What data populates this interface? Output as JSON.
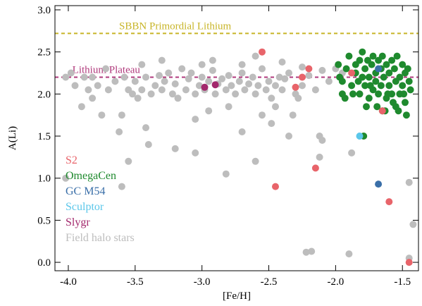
{
  "chart_data": {
    "type": "scatter",
    "xlabel": "[Fe/H]",
    "ylabel": "A(Li)",
    "xlim": [
      -4.1,
      -1.38
    ],
    "ylim": [
      -0.1,
      3.05
    ],
    "xticks": [
      -4.0,
      -3.5,
      -3.0,
      -2.5,
      -2.0,
      -1.5
    ],
    "xtick_labels": [
      "-4.0",
      "-3.5",
      "-3.0",
      "-2.5",
      "-2.0",
      "-1.5"
    ],
    "yticks": [
      0.0,
      0.5,
      1.0,
      1.5,
      2.0,
      2.5,
      3.0
    ],
    "ytick_labels": [
      "0.0",
      "0.5",
      "1.0",
      "1.5",
      "2.0",
      "2.5",
      "3.0"
    ],
    "reference_lines": [
      {
        "label": "SBBN Primordial Lithium",
        "y": 2.72,
        "color": "#c8b528"
      },
      {
        "label": "Lithium Plateau",
        "y": 2.2,
        "color": "#b03a7c"
      }
    ],
    "legend": {
      "placement": "left",
      "entries": [
        {
          "label": "S2",
          "color": "#e8646a"
        },
        {
          "label": "OmegaCen",
          "color": "#1f8a2e"
        },
        {
          "label": "GC M54",
          "color": "#3a6fa8"
        },
        {
          "label": "Sculptor",
          "color": "#5bc7ea"
        },
        {
          "label": "Slygr",
          "color": "#a3286c"
        },
        {
          "label": "Field halo stars",
          "color": "#bdbdbd"
        }
      ]
    },
    "series": [
      {
        "name": "Field halo stars",
        "color": "#bdbdbd",
        "points": [
          [
            -4.02,
            2.2
          ],
          [
            -3.98,
            2.25
          ],
          [
            -3.95,
            2.1
          ],
          [
            -3.9,
            1.85
          ],
          [
            -3.88,
            2.2
          ],
          [
            -3.85,
            2.05
          ],
          [
            -3.82,
            1.95
          ],
          [
            -3.78,
            2.1
          ],
          [
            -3.75,
            1.75
          ],
          [
            -3.7,
            2.05
          ],
          [
            -3.65,
            2.15
          ],
          [
            -3.62,
            1.55
          ],
          [
            -3.6,
            1.75
          ],
          [
            -3.58,
            2.2
          ],
          [
            -3.55,
            2.05
          ],
          [
            -3.52,
            2.0
          ],
          [
            -3.5,
            2.15
          ],
          [
            -3.48,
            1.95
          ],
          [
            -3.45,
            2.05
          ],
          [
            -3.42,
            2.2
          ],
          [
            -3.4,
            1.4
          ],
          [
            -3.38,
            2.0
          ],
          [
            -3.35,
            2.1
          ],
          [
            -3.32,
            2.22
          ],
          [
            -3.3,
            2.05
          ],
          [
            -3.28,
            2.15
          ],
          [
            -3.25,
            2.25
          ],
          [
            -3.22,
            2.0
          ],
          [
            -3.2,
            2.12
          ],
          [
            -3.18,
            1.95
          ],
          [
            -3.15,
            2.3
          ],
          [
            -3.12,
            2.05
          ],
          [
            -3.1,
            2.18
          ],
          [
            -3.08,
            2.25
          ],
          [
            -3.05,
            2.0
          ],
          [
            -3.02,
            2.1
          ],
          [
            -3.0,
            2.2
          ],
          [
            -2.98,
            2.05
          ],
          [
            -2.95,
            2.15
          ],
          [
            -2.92,
            2.28
          ],
          [
            -2.9,
            2.0
          ],
          [
            -2.88,
            2.12
          ],
          [
            -2.85,
            2.18
          ],
          [
            -2.82,
            2.05
          ],
          [
            -2.8,
            2.22
          ],
          [
            -2.78,
            2.1
          ],
          [
            -2.75,
            2.0
          ],
          [
            -2.72,
            2.15
          ],
          [
            -2.7,
            2.25
          ],
          [
            -2.68,
            2.05
          ],
          [
            -2.65,
            2.12
          ],
          [
            -2.62,
            2.2
          ],
          [
            -2.6,
            2.0
          ],
          [
            -2.58,
            2.1
          ],
          [
            -2.55,
            2.3
          ],
          [
            -2.52,
            2.05
          ],
          [
            -2.5,
            2.15
          ],
          [
            -2.48,
            1.95
          ],
          [
            -2.45,
            2.1
          ],
          [
            -2.42,
            2.2
          ],
          [
            -2.4,
            2.05
          ],
          [
            -2.38,
            2.18
          ],
          [
            -2.35,
            2.25
          ],
          [
            -2.3,
            2.0
          ],
          [
            -2.25,
            2.1
          ],
          [
            -2.2,
            2.22
          ],
          [
            -2.15,
            2.05
          ],
          [
            -2.1,
            2.28
          ],
          [
            -2.05,
            2.15
          ],
          [
            -2.0,
            2.3
          ],
          [
            -1.95,
            2.25
          ],
          [
            -3.82,
            2.2
          ],
          [
            -3.72,
            2.3
          ],
          [
            -3.45,
            2.35
          ],
          [
            -3.3,
            2.4
          ],
          [
            -3.0,
            2.35
          ],
          [
            -2.92,
            2.4
          ],
          [
            -2.7,
            2.35
          ],
          [
            -2.6,
            2.45
          ],
          [
            -2.4,
            2.38
          ],
          [
            -2.25,
            2.32
          ],
          [
            -3.42,
            1.6
          ],
          [
            -3.05,
            1.7
          ],
          [
            -2.95,
            1.8
          ],
          [
            -2.8,
            1.85
          ],
          [
            -2.7,
            1.55
          ],
          [
            -2.55,
            1.75
          ],
          [
            -2.48,
            1.65
          ],
          [
            -2.45,
            1.85
          ],
          [
            -2.35,
            1.5
          ],
          [
            -2.32,
            1.75
          ],
          [
            -2.28,
            1.95
          ],
          [
            -2.12,
            1.5
          ],
          [
            -2.1,
            1.45
          ],
          [
            -3.55,
            1.2
          ],
          [
            -3.2,
            1.35
          ],
          [
            -3.05,
            1.3
          ],
          [
            -2.82,
            1.05
          ],
          [
            -2.6,
            1.2
          ],
          [
            -2.12,
            1.25
          ],
          [
            -3.6,
            0.9
          ],
          [
            -4.02,
            1.0
          ],
          [
            -2.22,
            0.12
          ],
          [
            -2.18,
            0.13
          ],
          [
            -1.9,
            0.1
          ],
          [
            -1.88,
            1.3
          ],
          [
            -1.45,
            0.95
          ],
          [
            -1.45,
            0.05
          ],
          [
            -1.42,
            0.45
          ]
        ]
      },
      {
        "name": "OmegaCen",
        "color": "#1f8a2e",
        "points": [
          [
            -1.95,
            2.0
          ],
          [
            -1.95,
            2.15
          ],
          [
            -1.92,
            2.3
          ],
          [
            -1.9,
            2.45
          ],
          [
            -1.88,
            2.1
          ],
          [
            -1.85,
            2.35
          ],
          [
            -1.85,
            2.25
          ],
          [
            -1.82,
            2.0
          ],
          [
            -1.82,
            2.4
          ],
          [
            -1.8,
            2.2
          ],
          [
            -1.8,
            2.5
          ],
          [
            -1.78,
            2.3
          ],
          [
            -1.78,
            2.1
          ],
          [
            -1.76,
            2.4
          ],
          [
            -1.75,
            1.95
          ],
          [
            -1.75,
            2.2
          ],
          [
            -1.73,
            2.35
          ],
          [
            -1.72,
            2.05
          ],
          [
            -1.72,
            2.45
          ],
          [
            -1.7,
            2.25
          ],
          [
            -1.7,
            2.15
          ],
          [
            -1.68,
            2.4
          ],
          [
            -1.68,
            2.0
          ],
          [
            -1.66,
            2.3
          ],
          [
            -1.66,
            2.1
          ],
          [
            -1.65,
            2.45
          ],
          [
            -1.64,
            2.2
          ],
          [
            -1.62,
            1.95
          ],
          [
            -1.62,
            2.35
          ],
          [
            -1.6,
            2.25
          ],
          [
            -1.6,
            2.1
          ],
          [
            -1.58,
            2.4
          ],
          [
            -1.58,
            2.0
          ],
          [
            -1.56,
            2.3
          ],
          [
            -1.55,
            2.15
          ],
          [
            -1.55,
            1.85
          ],
          [
            -1.54,
            2.45
          ],
          [
            -1.52,
            2.2
          ],
          [
            -1.52,
            2.0
          ],
          [
            -1.5,
            2.35
          ],
          [
            -1.5,
            2.1
          ],
          [
            -1.48,
            2.25
          ],
          [
            -1.48,
            1.9
          ],
          [
            -1.46,
            2.3
          ],
          [
            -1.45,
            2.15
          ],
          [
            -1.44,
            2.05
          ],
          [
            -1.98,
            2.35
          ],
          [
            -1.97,
            2.2
          ],
          [
            -1.93,
            1.95
          ],
          [
            -1.87,
            2.0
          ],
          [
            -1.83,
            2.15
          ],
          [
            -1.77,
            1.85
          ],
          [
            -1.74,
            2.1
          ],
          [
            -1.69,
            1.85
          ],
          [
            -1.63,
            1.8
          ],
          [
            -1.61,
            2.0
          ],
          [
            -1.57,
            1.9
          ],
          [
            -1.53,
            1.8
          ],
          [
            -1.49,
            2.0
          ],
          [
            -1.47,
            1.75
          ],
          [
            -1.79,
            1.5
          ],
          [
            -1.65,
            1.8
          ]
        ]
      },
      {
        "name": "GC M54",
        "color": "#3a6fa8",
        "points": [
          [
            -1.68,
            2.3
          ],
          [
            -1.68,
            0.93
          ]
        ]
      },
      {
        "name": "Sculptor",
        "color": "#5bc7ea",
        "points": [
          [
            -1.82,
            1.5
          ]
        ]
      },
      {
        "name": "Slygr",
        "color": "#a3286c",
        "points": [
          [
            -2.98,
            2.08
          ],
          [
            -2.9,
            2.11
          ]
        ]
      },
      {
        "name": "S2",
        "color": "#e8646a",
        "points": [
          [
            -2.55,
            2.5
          ],
          [
            -2.3,
            2.08
          ],
          [
            -2.25,
            2.2
          ],
          [
            -2.2,
            2.3
          ],
          [
            -1.88,
            2.25
          ],
          [
            -2.15,
            1.12
          ],
          [
            -2.45,
            0.9
          ],
          [
            -1.65,
            1.8
          ],
          [
            -1.6,
            0.72
          ],
          [
            -1.45,
            0.0
          ]
        ]
      }
    ]
  }
}
